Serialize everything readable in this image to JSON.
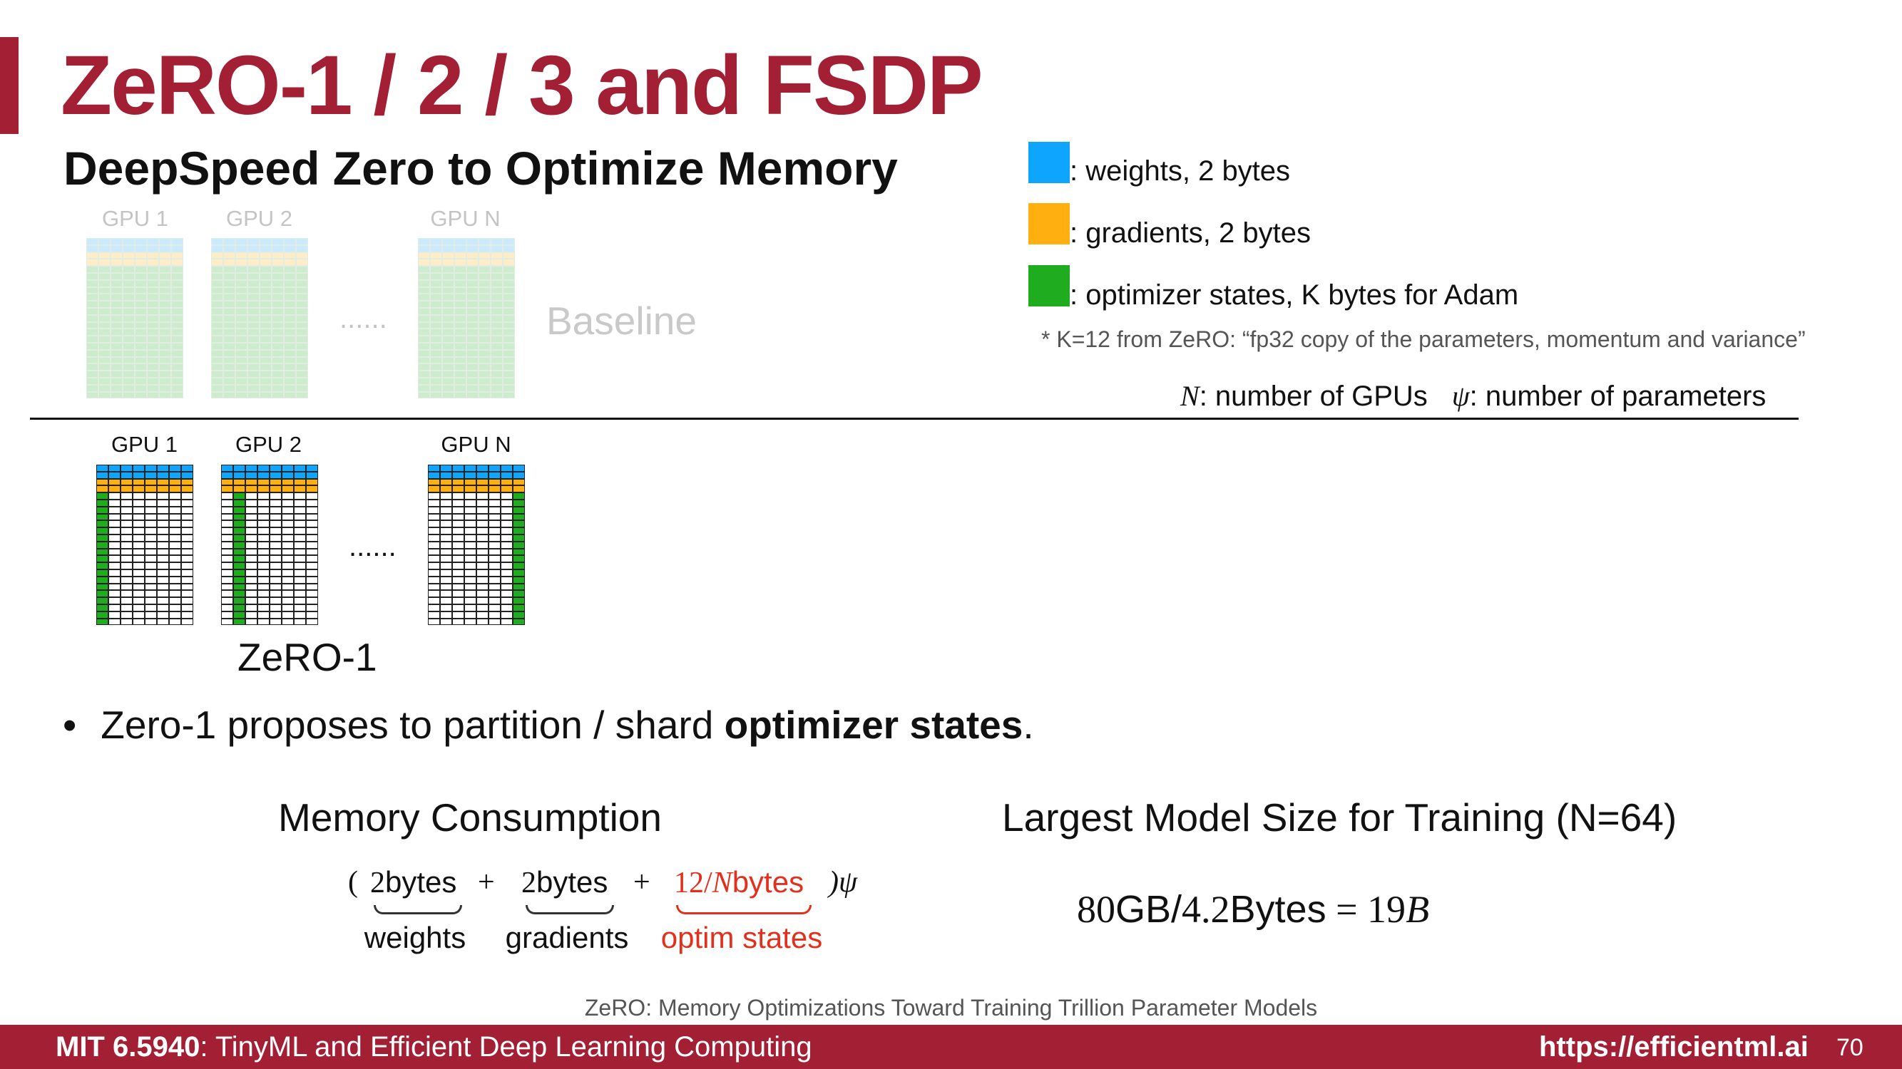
{
  "slide": {
    "title": "ZeRO-1 / 2 / 3 and FSDP",
    "subtitle": "DeepSpeed Zero to Optimize Memory",
    "page_number": "70"
  },
  "colors": {
    "brand": "#a31f34",
    "weights": "#0ea5ff",
    "gradients": "#ffaf0f",
    "optimizer": "#1fad1f",
    "emphasis": "#e2301c"
  },
  "baseline": {
    "label": "Baseline",
    "gpu_labels": [
      "GPU 1",
      "GPU 2",
      "GPU N"
    ],
    "ellipsis": "......"
  },
  "zero1": {
    "label": "ZeRO-1",
    "gpu_labels": [
      "GPU 1",
      "GPU 2",
      "GPU N"
    ],
    "ellipsis": "......"
  },
  "legend": {
    "weights": ": weights,  2 bytes",
    "gradients": ": gradients, 2 bytes",
    "optimizer": ": optimizer states, K bytes for Adam",
    "note": "* K=12 from ZeRO: “fp32 copy of the parameters, momentum and variance”",
    "n_symbol": "N",
    "n_text": ": number of GPUs",
    "psi_symbol": "ψ",
    "psi_text": ": number of parameters"
  },
  "bullet": {
    "marker": "•",
    "text_pre": "Zero-1 proposes to partition / shard ",
    "text_bold": "optimizer states",
    "text_post": "."
  },
  "memory": {
    "title": "Memory Consumption",
    "open_paren": "(",
    "term1_num": "2",
    "term1_unit": "bytes",
    "plus1": "+",
    "term2_num": "2",
    "term2_unit": "bytes",
    "plus2": "+",
    "term3_num": "12/",
    "term3_var": "N",
    "term3_unit": "bytes",
    "close": ")ψ",
    "label1": "weights",
    "label2": "gradients",
    "label3": "optim states"
  },
  "largest": {
    "title": "Largest Model Size for Training (N=64)",
    "num1": "80",
    "unit1": "GB/",
    "num2": "4.2",
    "unit2": "Bytes",
    "eq": " = 19",
    "var": "B"
  },
  "citation": "ZeRO: Memory Optimizations Toward Training Trillion Parameter Models",
  "footer": {
    "course": "MIT 6.5940",
    "course_title": ": TinyML and Efficient Deep Learning Computing",
    "url": "https://efficientml.ai"
  }
}
